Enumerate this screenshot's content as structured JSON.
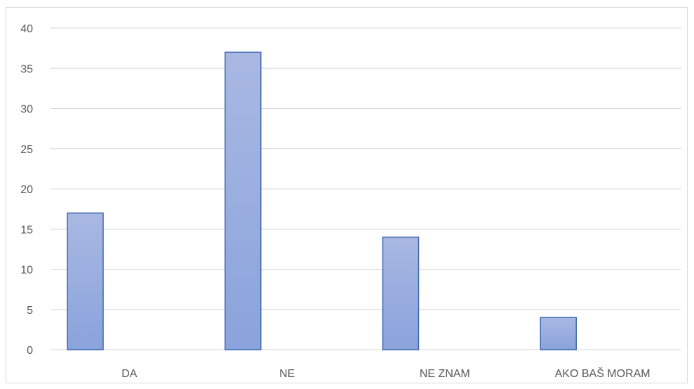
{
  "chart_data": {
    "type": "bar",
    "categories": [
      "DA",
      "NE",
      "NE ZNAM",
      "AKO BAŠ MORAM"
    ],
    "values": [
      17,
      37,
      14,
      4
    ],
    "ylim": [
      0,
      40
    ],
    "yticks": [
      0,
      5,
      10,
      15,
      20,
      25,
      30,
      35,
      40
    ],
    "grid": true,
    "legend": "none",
    "colors": {
      "bar_top": "#a9b8e2",
      "bar_bottom": "#8aa3dc",
      "bar_border": "#3f66b3",
      "grid": "#d9d9d9",
      "text": "#595959"
    }
  }
}
